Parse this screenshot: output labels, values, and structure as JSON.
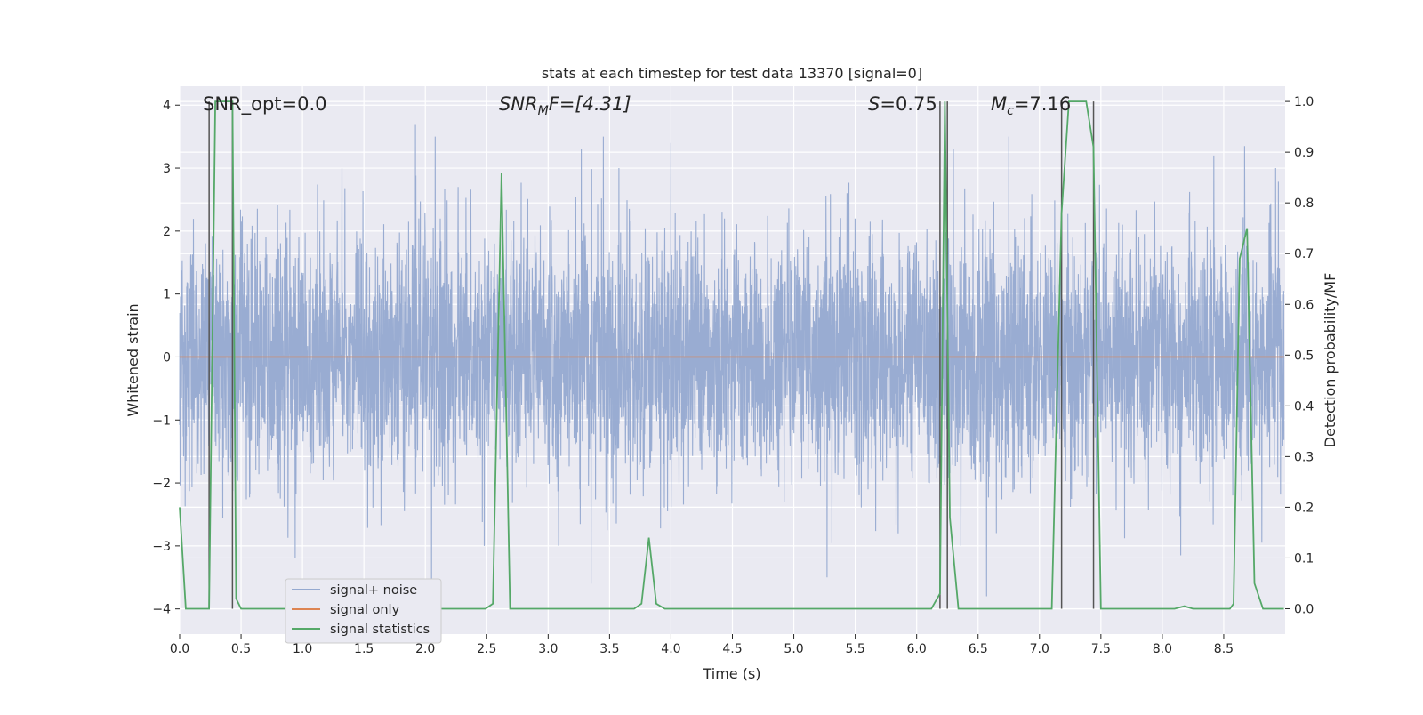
{
  "chart_data": {
    "type": "line",
    "title": "stats at each timestep for test data 13370 [signal=0]",
    "xlabel": "Time (s)",
    "ylabel_left": "Whitened strain",
    "ylabel_right": "Detection probability/MF",
    "xlim": [
      0.0,
      9.0
    ],
    "ylim_left": [
      -4.4,
      4.3
    ],
    "ylim_right": [
      -0.05,
      1.03
    ],
    "x_ticks": [
      0.0,
      0.5,
      1.0,
      1.5,
      2.0,
      2.5,
      3.0,
      3.5,
      4.0,
      4.5,
      5.0,
      5.5,
      6.0,
      6.5,
      7.0,
      7.5,
      8.0,
      8.5
    ],
    "x_tick_labels": [
      "0.0",
      "0.5",
      "1.0",
      "1.5",
      "2.0",
      "2.5",
      "3.0",
      "3.5",
      "4.0",
      "4.5",
      "5.0",
      "5.5",
      "6.0",
      "6.5",
      "7.0",
      "7.5",
      "8.0",
      "8.5"
    ],
    "y_left_ticks": [
      -4,
      -3,
      -2,
      -1,
      0,
      1,
      2,
      3,
      4
    ],
    "y_left_tick_labels": [
      "−4",
      "−3",
      "−2",
      "−1",
      "0",
      "1",
      "2",
      "3",
      "4"
    ],
    "y_right_ticks": [
      0.0,
      0.1,
      0.2,
      0.3,
      0.4,
      0.5,
      0.6,
      0.7,
      0.8,
      0.9,
      1.0
    ],
    "y_right_tick_labels": [
      "0.0",
      "0.1",
      "0.2",
      "0.3",
      "0.4",
      "0.5",
      "0.6",
      "0.7",
      "0.8",
      "0.9",
      "1.0"
    ],
    "grid": true,
    "legend_position": "lower-left",
    "annotations": {
      "snr_opt": "SNR_opt=0.0",
      "snr_mf_base": "SNR",
      "snr_mf_sub": "M",
      "snr_mf_rest": "F=[4.31]",
      "s_base": "S",
      "s_rest": "=0.75",
      "mc_base": "M",
      "mc_sub": "c",
      "mc_rest": "=7.16"
    },
    "series": [
      {
        "name": "signal+ noise",
        "color": "#95a9d0",
        "axis": "left",
        "kind": "noise",
        "x_range": [
          0.0,
          8.99
        ],
        "core_envelope": [
          -1.5,
          1.5
        ],
        "peaks": [
          {
            "x": 1.92,
            "y": 3.7
          },
          {
            "x": 2.05,
            "y": -3.6
          },
          {
            "x": 2.08,
            "y": 3.5
          },
          {
            "x": 3.35,
            "y": -3.6
          },
          {
            "x": 3.45,
            "y": 3.5
          },
          {
            "x": 0.94,
            "y": -3.2
          },
          {
            "x": 4.0,
            "y": 3.4
          },
          {
            "x": 5.27,
            "y": -3.5
          },
          {
            "x": 6.57,
            "y": -3.8
          },
          {
            "x": 6.75,
            "y": 3.5
          },
          {
            "x": 8.15,
            "y": -3.15
          },
          {
            "x": 8.67,
            "y": 3.35
          },
          {
            "x": 8.81,
            "y": -2.95
          },
          {
            "x": 8.42,
            "y": 3.2
          },
          {
            "x": 0.43,
            "y": 3.3
          },
          {
            "x": 3.27,
            "y": 3.3
          },
          {
            "x": 2.48,
            "y": -3.0
          },
          {
            "x": 6.3,
            "y": 3.3
          }
        ]
      },
      {
        "name": "signal only",
        "color": "#dd8452",
        "axis": "left",
        "values": [
          0.0
        ]
      },
      {
        "name": "signal statistics",
        "color": "#55a868",
        "axis": "right",
        "x": [
          0.0,
          0.05,
          0.1,
          0.2,
          0.24,
          0.29,
          0.35,
          0.4,
          0.43,
          0.46,
          0.5,
          0.55,
          0.6,
          2.49,
          2.55,
          2.62,
          2.69,
          2.73,
          3.7,
          3.76,
          3.82,
          3.88,
          3.95,
          6.12,
          6.19,
          6.23,
          6.27,
          6.34,
          6.39,
          6.44,
          6.6,
          6.9,
          7.1,
          7.18,
          7.24,
          7.31,
          7.38,
          7.44,
          7.5,
          7.55,
          8.1,
          8.18,
          8.25,
          8.55,
          8.58,
          8.63,
          8.69,
          8.75,
          8.82,
          8.89,
          8.99
        ],
        "y": [
          0.2,
          0.0,
          0.0,
          0.0,
          0.0,
          1.0,
          1.0,
          1.0,
          1.0,
          0.02,
          0.0,
          0.0,
          0.0,
          0.0,
          0.01,
          0.86,
          0.0,
          0.0,
          0.0,
          0.01,
          0.14,
          0.01,
          0.0,
          0.0,
          0.03,
          1.0,
          0.18,
          0.0,
          0.0,
          0.0,
          0.0,
          0.0,
          0.0,
          0.78,
          1.0,
          1.0,
          1.0,
          0.91,
          0.0,
          0.0,
          0.0,
          0.005,
          0.0,
          0.0,
          0.01,
          0.69,
          0.75,
          0.05,
          0.0,
          0.0,
          0.0
        ]
      }
    ],
    "event_markers": [
      {
        "x": 0.24,
        "color": "#555555"
      },
      {
        "x": 0.43,
        "color": "#555555"
      },
      {
        "x": 6.19,
        "color": "#555555"
      },
      {
        "x": 6.25,
        "color": "#555555"
      },
      {
        "x": 7.18,
        "color": "#555555"
      },
      {
        "x": 7.44,
        "color": "#555555"
      }
    ]
  },
  "colors": {
    "plot_background": "#eaeaf2",
    "grid": "#ffffff",
    "legend_background": "#eaeaf2",
    "legend_border": "#cccccc"
  }
}
